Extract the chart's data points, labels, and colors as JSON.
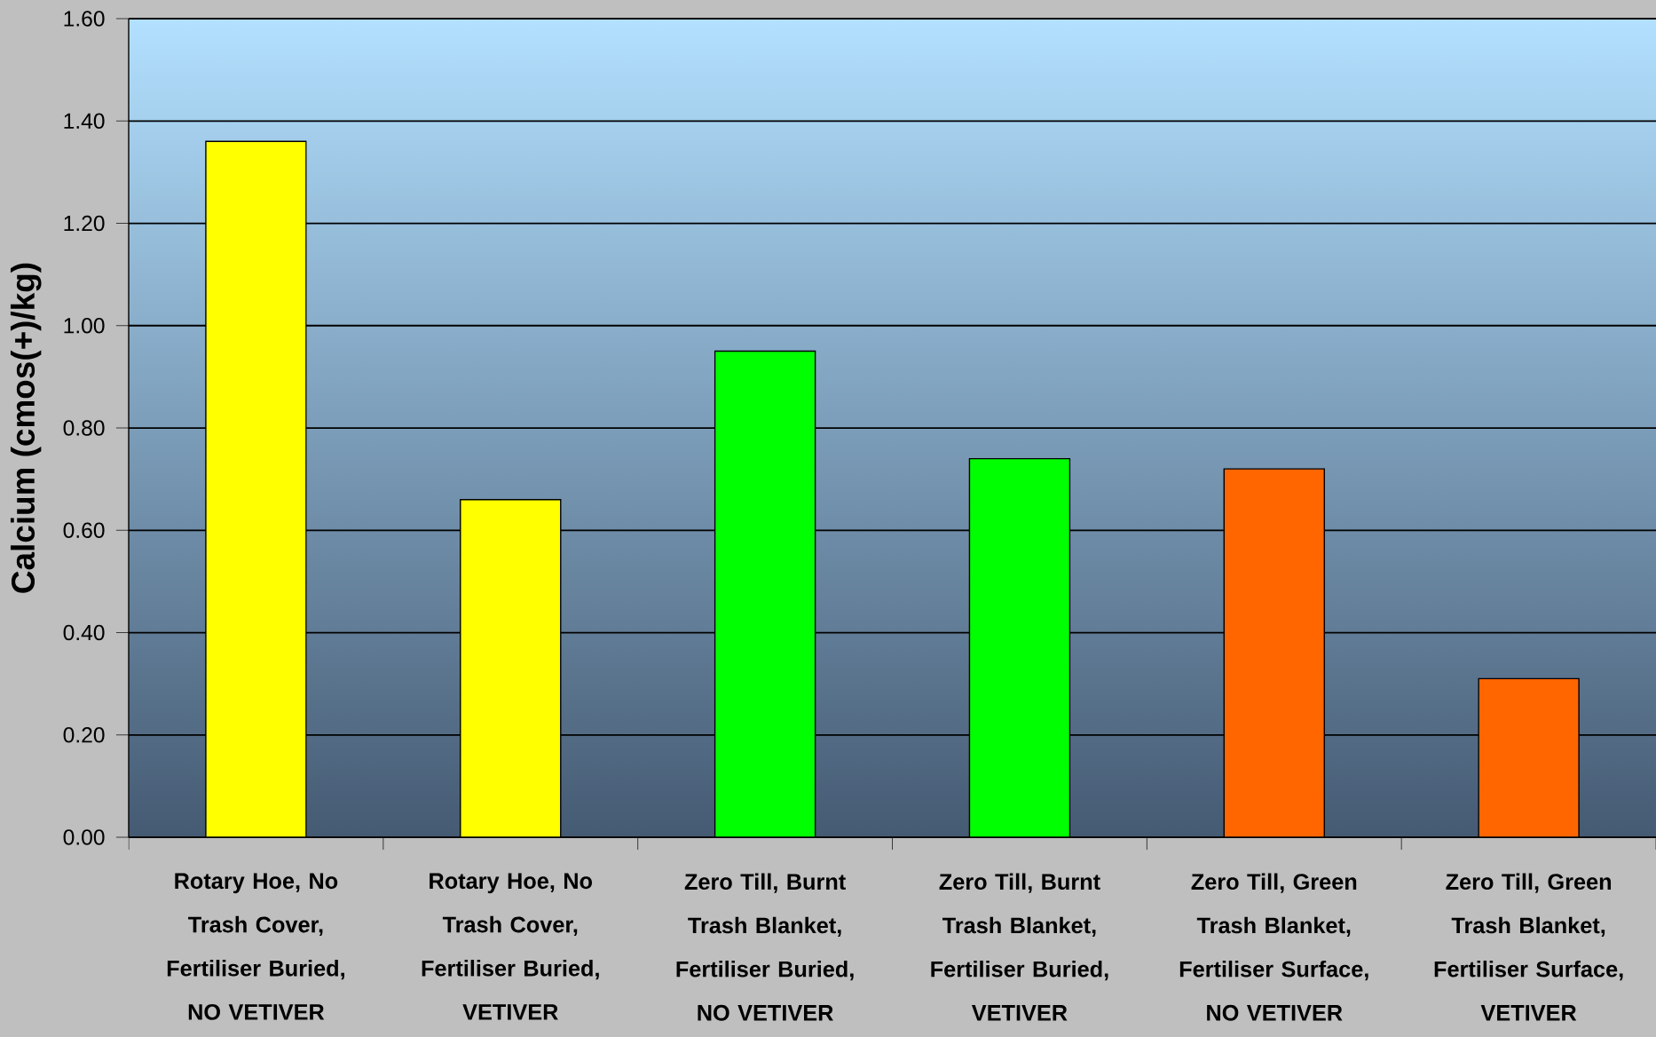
{
  "chart_data": {
    "type": "bar",
    "ylabel": "Calcium (cmos(+)/kg)",
    "categories": [
      "Rotary Hoe, No Trash Cover, Fertiliser Buried, NO VETIVER",
      "Rotary Hoe, No Trash Cover, Fertiliser Buried, VETIVER",
      "Zero Till, Burnt Trash Blanket, Fertiliser Buried, NO VETIVER",
      "Zero Till, Burnt Trash Blanket, Fertiliser Buried, VETIVER",
      "Zero Till, Green Trash Blanket, Fertiliser Surface, NO VETIVER",
      "Zero Till, Green Trash Blanket, Fertiliser Surface, VETIVER"
    ],
    "values": [
      1.36,
      0.66,
      0.95,
      0.74,
      0.72,
      0.31
    ],
    "colors": [
      "#ffff00",
      "#ffff00",
      "#00ff00",
      "#00ff00",
      "#ff6600",
      "#ff6600"
    ],
    "ylim": [
      0,
      1.6
    ],
    "yticks": [
      {
        "value": 0,
        "label": "0.00"
      },
      {
        "value": 0.2,
        "label": "0.20"
      },
      {
        "value": 0.4,
        "label": "0.40"
      },
      {
        "value": 0.6,
        "label": "0.60"
      },
      {
        "value": 0.8,
        "label": "0.80"
      },
      {
        "value": 1.0,
        "label": "1.00"
      },
      {
        "value": 1.2,
        "label": "1.20"
      },
      {
        "value": 1.4,
        "label": "1.40"
      },
      {
        "value": 1.6,
        "label": "1.60"
      }
    ],
    "grid": "y"
  }
}
